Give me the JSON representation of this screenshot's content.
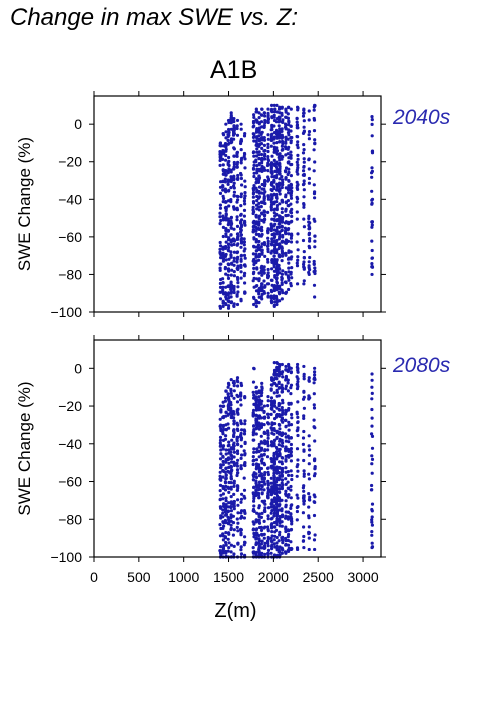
{
  "page": {
    "title": "Change in max SWE vs. Z:",
    "scenario": "A1B"
  },
  "colors": {
    "points": "#1a1aaa",
    "period_label": "#2a2ab0"
  },
  "chart_data": [
    {
      "type": "scatter",
      "period": "2040s",
      "ylabel": "SWE Change (%)",
      "xlabel": "",
      "xlim": [
        0,
        3200
      ],
      "ylim": [
        -100,
        15
      ],
      "x_ticks": [
        0,
        500,
        1000,
        1500,
        2000,
        2500,
        3000
      ],
      "y_ticks": [
        0,
        -20,
        -40,
        -60,
        -80,
        -100
      ],
      "y_tick_labels": [
        "0",
        "−20",
        "−40",
        "−60",
        "−80",
        "−100"
      ],
      "grid": false,
      "columns": [
        {
          "z": 1410,
          "min": -98,
          "max": -10,
          "n": 40
        },
        {
          "z": 1440,
          "min": -97,
          "max": -5,
          "n": 50
        },
        {
          "z": 1470,
          "min": -96,
          "max": 0,
          "n": 55
        },
        {
          "z": 1500,
          "min": -98,
          "max": 2,
          "n": 60
        },
        {
          "z": 1530,
          "min": -95,
          "max": 6,
          "n": 60
        },
        {
          "z": 1560,
          "min": -97,
          "max": 3,
          "n": 55
        },
        {
          "z": 1600,
          "min": -96,
          "max": 2,
          "n": 50
        },
        {
          "z": 1640,
          "min": -94,
          "max": 0,
          "n": 45
        },
        {
          "z": 1680,
          "min": -90,
          "max": -5,
          "n": 35
        },
        {
          "z": 1780,
          "min": -96,
          "max": 5,
          "n": 60
        },
        {
          "z": 1810,
          "min": -97,
          "max": 8,
          "n": 70
        },
        {
          "z": 1840,
          "min": -95,
          "max": 6,
          "n": 70
        },
        {
          "z": 1870,
          "min": -93,
          "max": 8,
          "n": 60
        },
        {
          "z": 1900,
          "min": -90,
          "max": 6,
          "n": 50
        },
        {
          "z": 1940,
          "min": -92,
          "max": 8,
          "n": 55
        },
        {
          "z": 1980,
          "min": -95,
          "max": 10,
          "n": 75
        },
        {
          "z": 2010,
          "min": -97,
          "max": 10,
          "n": 85
        },
        {
          "z": 2040,
          "min": -96,
          "max": 10,
          "n": 85
        },
        {
          "z": 2070,
          "min": -94,
          "max": 9,
          "n": 75
        },
        {
          "z": 2100,
          "min": -93,
          "max": 9,
          "n": 65
        },
        {
          "z": 2140,
          "min": -90,
          "max": 8,
          "n": 55
        },
        {
          "z": 2170,
          "min": -88,
          "max": 9,
          "n": 50
        },
        {
          "z": 2200,
          "min": -86,
          "max": 8,
          "n": 45
        },
        {
          "z": 2270,
          "min": -85,
          "max": 9,
          "n": 40
        },
        {
          "z": 2340,
          "min": -85,
          "max": 8,
          "n": 40
        },
        {
          "z": 2400,
          "min": -80,
          "max": 7,
          "n": 30
        },
        {
          "z": 2460,
          "min": -92,
          "max": 10,
          "n": 30
        },
        {
          "z": 3100,
          "min": -80,
          "max": 4,
          "n": 28
        }
      ]
    },
    {
      "type": "scatter",
      "period": "2080s",
      "ylabel": "SWE Change (%)",
      "xlabel": "Z(m)",
      "xlim": [
        0,
        3200
      ],
      "ylim": [
        -100,
        15
      ],
      "x_ticks": [
        0,
        500,
        1000,
        1500,
        2000,
        2500,
        3000
      ],
      "x_tick_labels": [
        "0",
        "500",
        "1000",
        "1500",
        "2000",
        "2500",
        "3000"
      ],
      "y_ticks": [
        0,
        -20,
        -40,
        -60,
        -80,
        -100
      ],
      "y_tick_labels": [
        "0",
        "−20",
        "−40",
        "−60",
        "−80",
        "−100"
      ],
      "grid": false,
      "columns": [
        {
          "z": 1410,
          "min": -100,
          "max": -20,
          "n": 40
        },
        {
          "z": 1440,
          "min": -100,
          "max": -18,
          "n": 45
        },
        {
          "z": 1470,
          "min": -100,
          "max": -12,
          "n": 50
        },
        {
          "z": 1500,
          "min": -100,
          "max": -8,
          "n": 55
        },
        {
          "z": 1530,
          "min": -100,
          "max": -6,
          "n": 55
        },
        {
          "z": 1560,
          "min": -100,
          "max": -7,
          "n": 50
        },
        {
          "z": 1600,
          "min": -100,
          "max": -5,
          "n": 45
        },
        {
          "z": 1640,
          "min": -100,
          "max": -8,
          "n": 40
        },
        {
          "z": 1680,
          "min": -100,
          "max": -15,
          "n": 30
        },
        {
          "z": 1780,
          "min": -100,
          "max": 0,
          "n": 60
        },
        {
          "z": 1810,
          "min": -100,
          "max": -10,
          "n": 65
        },
        {
          "z": 1840,
          "min": -100,
          "max": -12,
          "n": 65
        },
        {
          "z": 1870,
          "min": -100,
          "max": -8,
          "n": 55
        },
        {
          "z": 1900,
          "min": -100,
          "max": -20,
          "n": 45
        },
        {
          "z": 1940,
          "min": -100,
          "max": -15,
          "n": 50
        },
        {
          "z": 1980,
          "min": -100,
          "max": -5,
          "n": 70
        },
        {
          "z": 2010,
          "min": -100,
          "max": 3,
          "n": 80
        },
        {
          "z": 2040,
          "min": -100,
          "max": 3,
          "n": 80
        },
        {
          "z": 2070,
          "min": -100,
          "max": 2,
          "n": 70
        },
        {
          "z": 2100,
          "min": -98,
          "max": 2,
          "n": 60
        },
        {
          "z": 2140,
          "min": -98,
          "max": 1,
          "n": 50
        },
        {
          "z": 2170,
          "min": -97,
          "max": 2,
          "n": 45
        },
        {
          "z": 2200,
          "min": -96,
          "max": 0,
          "n": 40
        },
        {
          "z": 2270,
          "min": -96,
          "max": 2,
          "n": 35
        },
        {
          "z": 2340,
          "min": -95,
          "max": 1,
          "n": 35
        },
        {
          "z": 2400,
          "min": -96,
          "max": -5,
          "n": 25
        },
        {
          "z": 2460,
          "min": -96,
          "max": 0,
          "n": 28
        },
        {
          "z": 3100,
          "min": -95,
          "max": -3,
          "n": 28
        }
      ]
    }
  ]
}
